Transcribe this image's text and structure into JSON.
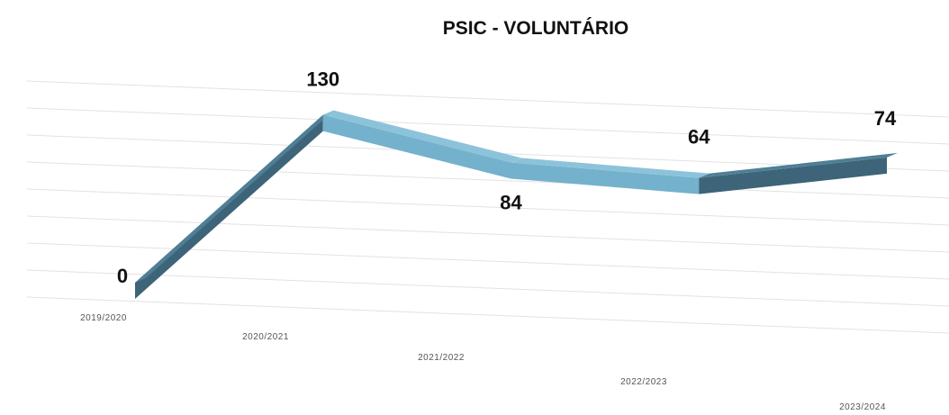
{
  "chart_data": {
    "type": "line",
    "style": "3d-ribbon",
    "title": "PSIC - VOLUNTÁRIO",
    "categories": [
      "2019/2020",
      "2020/2021",
      "2021/2022",
      "2022/2023",
      "2023/2024"
    ],
    "series": [
      {
        "values": [
          0,
          130,
          84,
          64,
          74
        ],
        "color": "#74b1cc",
        "side_color": "#3d6478"
      }
    ],
    "data_labels": [
      "0",
      "130",
      "84",
      "64",
      "74"
    ],
    "ylim": [
      0,
      150
    ],
    "grid": true,
    "legend": "none"
  }
}
